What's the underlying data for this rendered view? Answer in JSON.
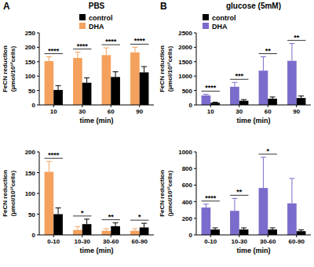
{
  "chart_data": [
    {
      "type": "bar",
      "panel_label": "A",
      "title": "PBS",
      "categories": [
        "10",
        "30",
        "60",
        "90"
      ],
      "series": [
        {
          "name": "DHA",
          "color": "#f4a15d",
          "values": [
            152,
            163,
            173,
            182
          ],
          "errors": [
            15,
            20,
            25,
            18
          ]
        },
        {
          "name": "control",
          "color": "#000000",
          "values": [
            52,
            77,
            97,
            113
          ],
          "errors": [
            15,
            17,
            18,
            20
          ]
        }
      ],
      "significance": [
        "****",
        "****",
        "****",
        "****"
      ],
      "ylim": [
        0,
        250
      ],
      "yticks": [
        0,
        50,
        100,
        150,
        200,
        250
      ],
      "y_label": [
        "FeCN reduction",
        "(µmol/10¹²cells)"
      ],
      "x_label": "time (min)",
      "legend": "upper center",
      "grid": false
    },
    {
      "type": "bar",
      "categories": [
        "0-10",
        "10-30",
        "30-60",
        "60-90"
      ],
      "series": [
        {
          "color": "#f4a15d",
          "values": [
            152,
            12,
            10,
            10
          ],
          "errors": [
            25,
            8,
            5,
            5
          ]
        },
        {
          "color": "#000000",
          "values": [
            50,
            26,
            21,
            18
          ],
          "errors": [
            15,
            12,
            8,
            10
          ]
        }
      ],
      "significance": [
        "****",
        "*",
        "**",
        "*"
      ],
      "ylim": [
        0,
        200
      ],
      "yticks": [
        0,
        50,
        100,
        150,
        200
      ],
      "y_label": [
        "FeCN reduction",
        "(µmol/10¹²cells)"
      ],
      "x_label": "time (min)",
      "grid": false
    },
    {
      "type": "bar",
      "panel_label": "B",
      "title": "glucose (5mM)",
      "categories": [
        "10",
        "30",
        "60",
        "90"
      ],
      "series": [
        {
          "name": "DHA",
          "color": "#7a6ccc",
          "values": [
            330,
            630,
            1190,
            1530
          ],
          "errors": [
            40,
            150,
            480,
            600
          ]
        },
        {
          "name": "control",
          "color": "#000000",
          "values": [
            75,
            145,
            215,
            240
          ],
          "errors": [
            20,
            40,
            60,
            70
          ]
        }
      ],
      "significance": [
        "****",
        "***",
        "**",
        "**"
      ],
      "ylim": [
        0,
        2500
      ],
      "yticks": [
        0,
        500,
        1000,
        1500,
        2000,
        2500
      ],
      "y_label": [
        "FeCN reduction",
        "(µmol/10¹²cells)"
      ],
      "x_label": "time (min)",
      "legend": "upper left",
      "grid": false
    },
    {
      "type": "bar",
      "categories": [
        "0-10",
        "10-30",
        "30-60",
        "60-90"
      ],
      "series": [
        {
          "color": "#7a6ccc",
          "values": [
            330,
            290,
            565,
            380
          ],
          "errors": [
            40,
            150,
            370,
            300
          ]
        },
        {
          "color": "#000000",
          "values": [
            65,
            65,
            65,
            45
          ],
          "errors": [
            20,
            20,
            20,
            15
          ]
        }
      ],
      "significance": [
        "****",
        "**",
        "*",
        null
      ],
      "ylim": [
        0,
        1000
      ],
      "yticks": [
        0,
        200,
        400,
        600,
        800,
        1000
      ],
      "y_label": [
        "FeCN reduction",
        "(µmol/10¹²cells)"
      ],
      "x_label": "time (min)",
      "grid": false
    }
  ]
}
